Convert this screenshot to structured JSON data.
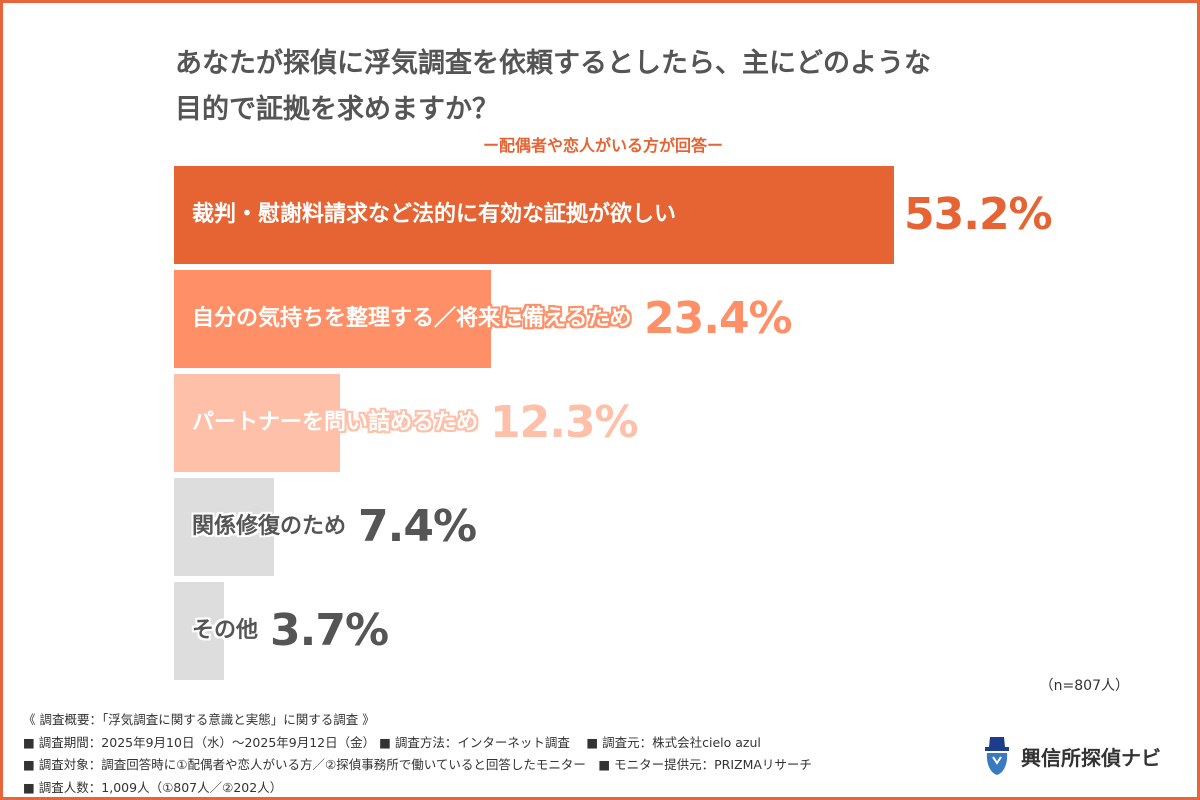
{
  "title_line1": "あなたが探偵に浮気調査を依頼するとしたら、主にどのような",
  "title_line2": "目的で証拠を求めますか？",
  "subtitle": "ー配偶者や恋人がいる方が回答ー",
  "chart_data": {
    "type": "bar",
    "orientation": "horizontal",
    "categories": [
      "裁判・慰謝料請求など法的に有効な証拠が欲しい",
      "自分の気持ちを整理する／将来に備えるため",
      "パートナーを問い詰めるため",
      "関係修復のため",
      "その他"
    ],
    "values": [
      53.2,
      23.4,
      12.3,
      7.4,
      3.7
    ],
    "value_labels": [
      "53.2%",
      "23.4%",
      "12.3%",
      "7.4%",
      "3.7%"
    ],
    "colors": [
      "#E66433",
      "#FF8F66",
      "#FEC0A8",
      "#DDDDDD",
      "#DDDDDD"
    ],
    "label_colors": [
      "#FFFFFF",
      "#FFFFFF",
      "#FFFFFF",
      "#555555",
      "#555555"
    ],
    "value_colors": [
      "#E66433",
      "#FF8F66",
      "#FEC0A8",
      "#555555",
      "#555555"
    ],
    "unit": "%"
  },
  "sample_note": "（n=807人）",
  "footer": [
    "《 調査概要：「浮気調査に関する意識と実態」に関する調査 》",
    "■ 調査期間：2025年9月10日（水）〜2025年9月12日（金） ■ 調査方法：インターネット調査　 ■ 調査元：株式会社cielo azul",
    "■ 調査対象：調査回答時に①配偶者や恋人がいる方／②探偵事務所で働いていると回答したモニター　■ モニター提供元：PRIZMAリサーチ",
    "■ 調査人数：1,009人（①807人／②202人）"
  ],
  "logo_text": "興信所探偵ナビ",
  "border_color": "#E8643A"
}
